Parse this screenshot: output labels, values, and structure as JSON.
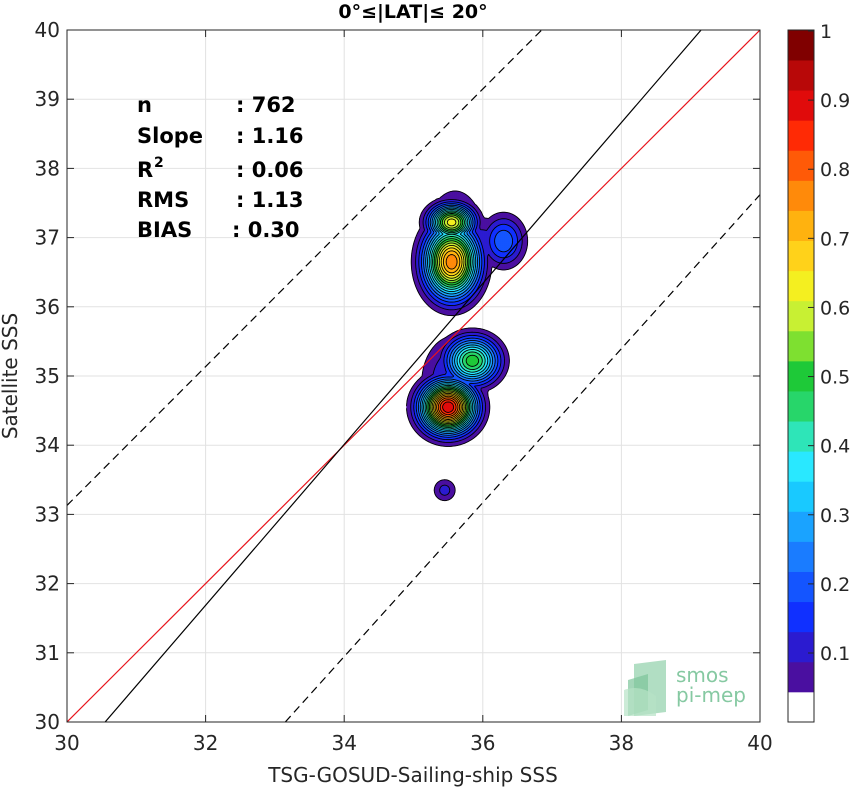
{
  "chart_data": {
    "type": "contour",
    "title": "0°≤|LAT|≤ 20°",
    "xlabel": "TSG-GOSUD-Sailing-ship SSS",
    "ylabel": "Satellite SSS",
    "xlim": [
      30,
      40
    ],
    "ylim": [
      30,
      40
    ],
    "xticks": [
      30,
      32,
      34,
      36,
      38,
      40
    ],
    "yticks": [
      30,
      31,
      32,
      33,
      34,
      35,
      36,
      37,
      38,
      39,
      40
    ],
    "grid": true,
    "stats": [
      {
        "label": "n",
        "sep": ": ",
        "value": "762"
      },
      {
        "label": "Slope",
        "sep": ": ",
        "value": "1.16"
      },
      {
        "label": "R",
        "sup": "2",
        "sep": ": ",
        "value": "0.06"
      },
      {
        "label": "RMS",
        "sep": ": ",
        "value": "1.13"
      },
      {
        "label": "BIAS",
        "sep": ": ",
        "value": "0.30"
      }
    ],
    "lines": [
      {
        "name": "1:1 line",
        "color": "#e8141c",
        "style": "solid",
        "x": [
          30,
          40
        ],
        "y": [
          30,
          40
        ]
      },
      {
        "name": "regression fit",
        "color": "#000000",
        "style": "solid",
        "x": [
          30.55,
          39.15
        ],
        "y": [
          30,
          40
        ]
      },
      {
        "name": "upper bound",
        "color": "#000000",
        "style": "dashed",
        "x": [
          30,
          36.85
        ],
        "y": [
          33.13,
          40
        ]
      },
      {
        "name": "lower bound",
        "color": "#000000",
        "style": "dashed",
        "x": [
          33.15,
          40
        ],
        "y": [
          30,
          37.62
        ]
      }
    ],
    "density_peaks": [
      {
        "x": 35.55,
        "y": 36.65,
        "value": 0.75
      },
      {
        "x": 35.55,
        "y": 37.22,
        "value": 0.62
      },
      {
        "x": 36.3,
        "y": 36.95,
        "value": 0.22
      },
      {
        "x": 35.85,
        "y": 35.22,
        "value": 0.5
      },
      {
        "x": 35.5,
        "y": 34.55,
        "value": 0.88
      },
      {
        "x": 35.45,
        "y": 33.35,
        "value": 0.12
      }
    ],
    "colorbar": {
      "min": 0,
      "max": 1,
      "ticks": [
        "0.1",
        "0.2",
        "0.3",
        "0.4",
        "0.5",
        "0.6",
        "0.7",
        "0.8",
        "0.9",
        "1"
      ],
      "colors": [
        "#ffffff",
        "#4a0fa0",
        "#2b1bd0",
        "#1030ff",
        "#1455ff",
        "#1a7cff",
        "#1aa3ff",
        "#19c9ff",
        "#29e8ff",
        "#2ee5b8",
        "#27d66a",
        "#1ec938",
        "#7ee030",
        "#c8f033",
        "#f4ef20",
        "#ffd21a",
        "#ffb20f",
        "#ff8a0a",
        "#ff5a07",
        "#ff2a05",
        "#e00b0b",
        "#b80808",
        "#800000"
      ]
    },
    "watermark": {
      "line1": "smos",
      "line2": "pi-mep"
    }
  }
}
